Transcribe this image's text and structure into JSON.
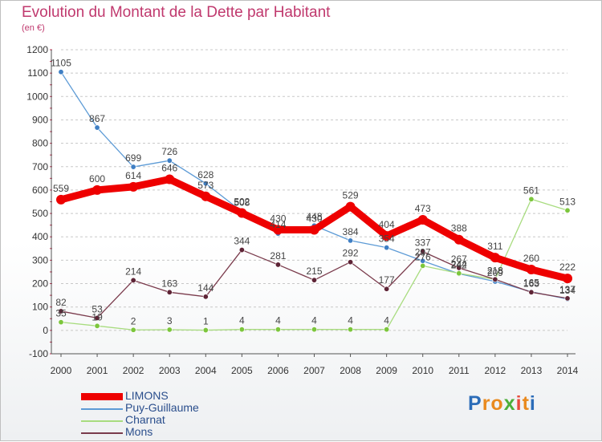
{
  "header": {
    "title": "Evolution du Montant de la Dette par Habitant",
    "subtitle": "(en €)"
  },
  "logo": {
    "text": "Proxiti",
    "letter_colors": [
      "#2b6cb8",
      "#e98a1f",
      "#e98a1f",
      "#4caf3a",
      "#e84c3d",
      "#e98a1f",
      "#2b6cb8"
    ]
  },
  "chart_data": {
    "type": "line",
    "title": "Evolution du Montant de la Dette par Habitant",
    "ylabel": "(en €)",
    "xlabel": "",
    "x": [
      2000,
      2001,
      2002,
      2003,
      2004,
      2005,
      2006,
      2007,
      2008,
      2009,
      2010,
      2011,
      2012,
      2013,
      2014
    ],
    "ylim": [
      -100,
      1200
    ],
    "yticks": [
      -100,
      0,
      100,
      200,
      300,
      400,
      500,
      600,
      700,
      800,
      900,
      1000,
      1100,
      1200
    ],
    "grid": "horizontal dashed",
    "legend_position": "bottom-left",
    "series": [
      {
        "name": "Puy-Guillaume",
        "color": "#5d9bd6",
        "marker_color": "#3f7fc4",
        "values": [
          1105,
          867,
          699,
          726,
          628,
          508,
          414,
          448,
          384,
          354,
          297,
          242,
          209,
          165,
          134
        ]
      },
      {
        "name": "Charnat",
        "color": "#a8dc7f",
        "marker_color": "#7cc63c",
        "values": [
          35,
          19,
          2,
          3,
          1,
          4,
          4,
          4,
          4,
          4,
          276,
          244,
          218,
          561,
          513
        ]
      },
      {
        "name": "Mons",
        "color": "#7a3b4c",
        "marker_color": "#5e2436",
        "values": [
          82,
          53,
          214,
          163,
          144,
          344,
          281,
          215,
          292,
          177,
          337,
          267,
          218,
          163,
          137
        ]
      },
      {
        "name": "LIMONS",
        "color": "#ee0000",
        "marker_color": "#ee0000",
        "values": [
          559,
          600,
          614,
          646,
          573,
          502,
          430,
          430,
          529,
          404,
          473,
          388,
          311,
          260,
          222
        ]
      }
    ],
    "legend": [
      {
        "name": "LIMONS",
        "color": "#ee0000"
      },
      {
        "name": "Puy-Guillaume",
        "color": "#5d9bd6"
      },
      {
        "name": "Charnat",
        "color": "#a8dc7f"
      },
      {
        "name": "Mons",
        "color": "#7a3b4c"
      }
    ]
  }
}
